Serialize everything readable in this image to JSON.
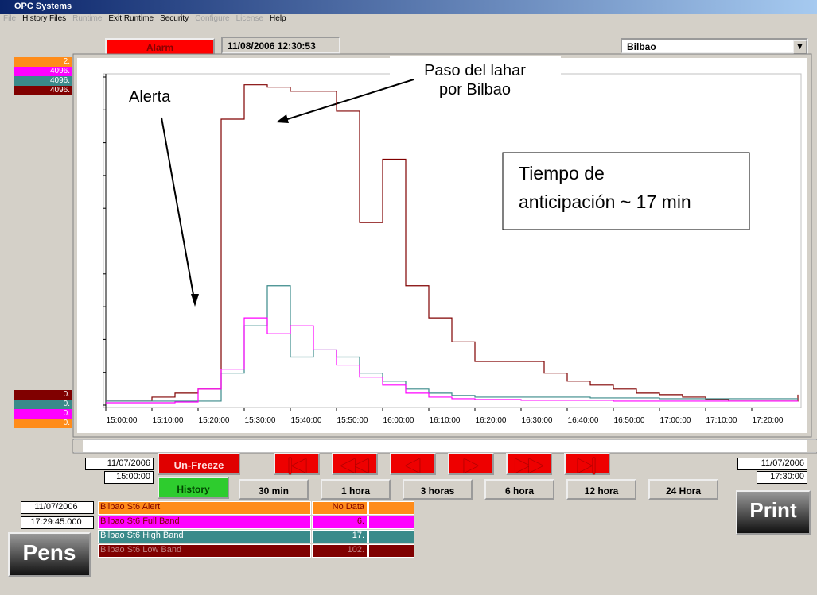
{
  "window": {
    "title": "OPC Systems",
    "menu": [
      "File",
      "History Files",
      "Runtime",
      "Exit Runtime",
      "Security",
      "Configure",
      "License",
      "Help"
    ]
  },
  "toolbar": {
    "alarm": "Alarm",
    "datetime": "11/08/2006 12:30:53",
    "location": "Bilbao"
  },
  "pen_scales": {
    "max": [
      {
        "text": "2.",
        "color": "#ff8c1a"
      },
      {
        "text": "4096.",
        "color": "#ff00ff"
      },
      {
        "text": "4096.",
        "color": "#3a8a8a"
      },
      {
        "text": "4096.",
        "color": "#800000"
      }
    ],
    "min": [
      {
        "text": "0.",
        "color": "#800000"
      },
      {
        "text": "0.",
        "color": "#3a8a8a"
      },
      {
        "text": "0.",
        "color": "#ff00ff"
      },
      {
        "text": "0.",
        "color": "#ff8c1a"
      }
    ]
  },
  "chart_data": {
    "type": "line",
    "x": [
      "15:00:00",
      "15:05:00",
      "15:10:00",
      "15:15:00",
      "15:20:00",
      "15:25:00",
      "15:30:00",
      "15:35:00",
      "15:40:00",
      "15:45:00",
      "15:50:00",
      "15:55:00",
      "16:00:00",
      "16:05:00",
      "16:10:00",
      "16:15:00",
      "16:20:00",
      "16:25:00",
      "16:30:00",
      "16:35:00",
      "16:40:00",
      "16:45:00",
      "16:50:00",
      "16:55:00",
      "17:00:00",
      "17:05:00",
      "17:10:00",
      "17:15:00",
      "17:20:00",
      "17:25:00",
      "17:30:00"
    ],
    "series": [
      {
        "name": "Bilbao St6 Low Band",
        "color": "#800000",
        "values": [
          50,
          50,
          100,
          150,
          200,
          3570,
          4000,
          3970,
          3920,
          3920,
          3670,
          2280,
          3070,
          1490,
          1090,
          790,
          545,
          545,
          545,
          400,
          300,
          250,
          200,
          150,
          130,
          100,
          70,
          50,
          50,
          50,
          130
        ]
      },
      {
        "name": "Bilbao St6 High Band",
        "color": "#3a8a8a",
        "values": [
          50,
          50,
          50,
          50,
          50,
          400,
          990,
          1490,
          600,
          690,
          600,
          400,
          300,
          200,
          150,
          120,
          100,
          100,
          100,
          100,
          100,
          90,
          90,
          90,
          80,
          80,
          80,
          80,
          80,
          80,
          80
        ]
      },
      {
        "name": "Bilbao St6 Full Band",
        "color": "#ff00ff",
        "values": [
          30,
          30,
          30,
          40,
          200,
          450,
          1090,
          890,
          990,
          690,
          500,
          350,
          250,
          150,
          100,
          80,
          70,
          70,
          60,
          60,
          60,
          60,
          50,
          50,
          50,
          50,
          50,
          50,
          50,
          50,
          50
        ]
      }
    ],
    "ylim": [
      0,
      4096
    ],
    "xlim": [
      "15:00:00",
      "17:30:00"
    ],
    "xticks": [
      "15:00:00",
      "15:10:00",
      "15:20:00",
      "15:30:00",
      "15:40:00",
      "15:50:00",
      "16:00:00",
      "16:10:00",
      "16:20:00",
      "16:30:00",
      "16:40:00",
      "16:50:00",
      "17:00:00",
      "17:10:00",
      "17:20:00"
    ],
    "annotations": [
      "Alerta",
      "Paso del lahar por Bilbao",
      "Tiempo de anticipación ~ 17 min"
    ]
  },
  "controls": {
    "start_date": "11/07/2006",
    "start_time": "15:00:00",
    "end_date": "11/07/2006",
    "end_time": "17:30:00",
    "cursor_date": "11/07/2006",
    "cursor_time": "17:29:45.000",
    "unfreeze": "Un-Freeze",
    "history": "History",
    "ranges": [
      "30 min",
      "1 hora",
      "3 horas",
      "6  hora",
      "12 hora",
      "24 Hora"
    ],
    "print": "Print",
    "pens": "Pens"
  },
  "pen_table": [
    {
      "name": "Bilbao St6 Alert",
      "value": "No Data",
      "bg": "#ff8c1a",
      "fg": "#800000"
    },
    {
      "name": "Bilbao St6 Full Band",
      "value": "6.",
      "bg": "#ff00ff",
      "fg": "#800000"
    },
    {
      "name": "Bilbao St6 High Band",
      "value": "17.",
      "bg": "#3a8a8a",
      "fg": "#ffffff"
    },
    {
      "name": "Bilbao St6 Low Band",
      "value": "102.",
      "bg": "#800000",
      "fg": "#c08080"
    }
  ]
}
